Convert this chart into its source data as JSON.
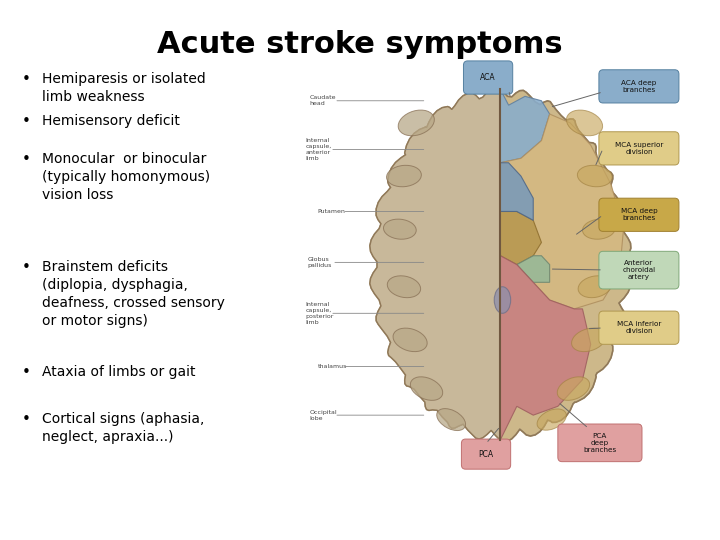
{
  "title": "Acute stroke symptoms",
  "title_fontsize": 22,
  "title_fontweight": "bold",
  "title_color": "#000000",
  "background_color": "#ffffff",
  "bullet_points": [
    "Hemiparesis or isolated\nlimb weakness",
    "Hemisensory deficit",
    "Monocular  or binocular\n(typically homonymous)\nvision loss",
    "Brainstem deficits\n(diplopia, dysphagia,\ndeafness, crossed sensory\nor motor signs)",
    "Ataxia of limbs or gait",
    "Cortical signs (aphasia,\nneglect, apraxia...)"
  ],
  "bullet_fontsize": 10,
  "bullet_color": "#000000",
  "figsize": [
    7.2,
    5.4
  ],
  "dpi": 100
}
